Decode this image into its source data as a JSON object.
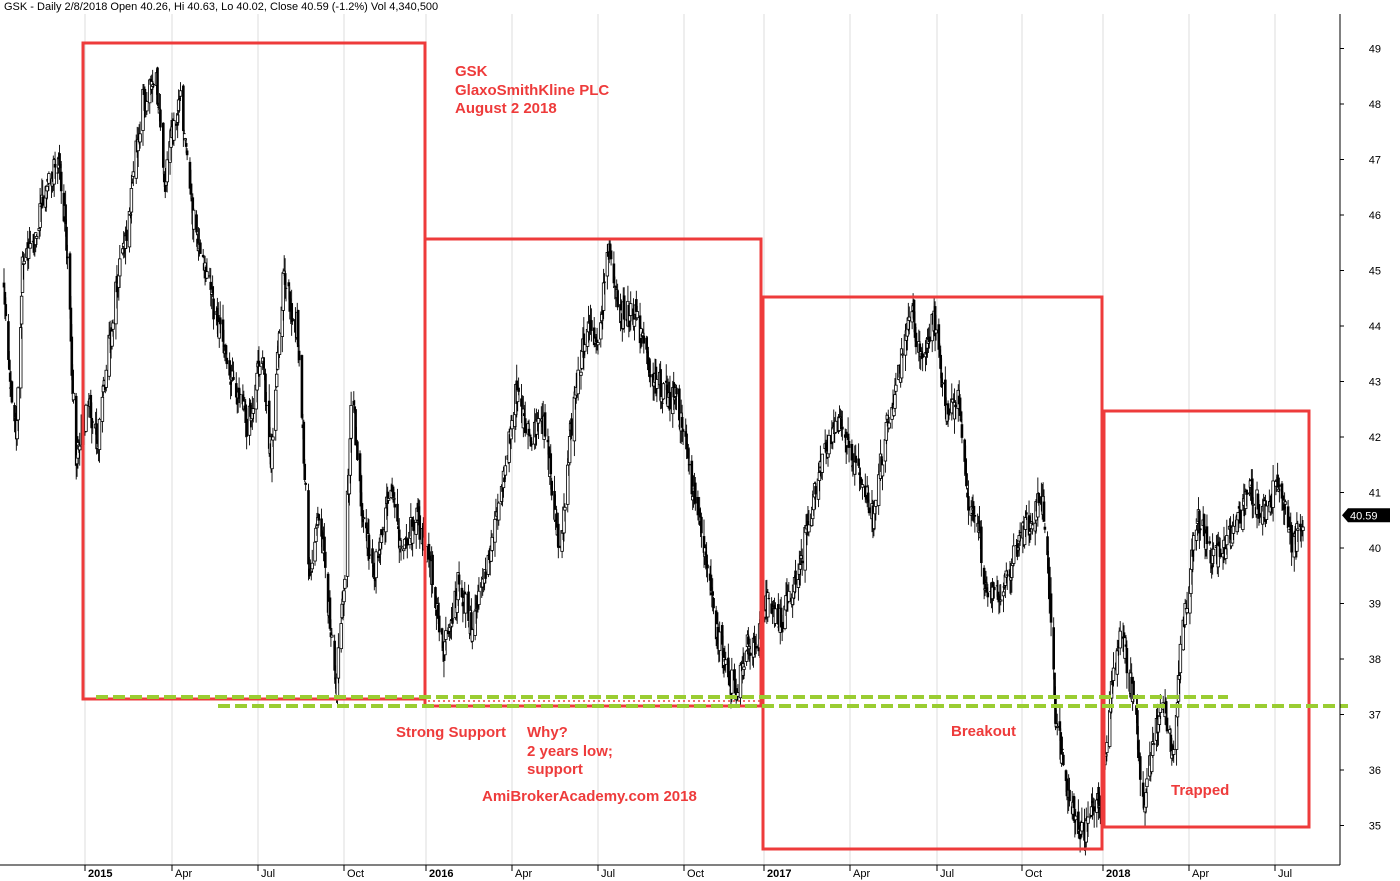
{
  "header": "GSK - Daily 2/8/2018 Open 40.26, Hi 40.63, Lo 40.02, Close 40.59 (-1.2%) Vol 4,340,500",
  "chart_data": {
    "type": "candlestick",
    "ylim": [
      34.6,
      49.5
    ],
    "y_ticks": [
      35,
      36,
      37,
      38,
      39,
      40,
      41,
      42,
      43,
      44,
      45,
      46,
      47,
      48,
      49
    ],
    "x_ticks": [
      {
        "label": "2015",
        "bold": true
      },
      {
        "label": "Apr",
        "bold": false
      },
      {
        "label": "Jul",
        "bold": false
      },
      {
        "label": "Oct",
        "bold": false
      },
      {
        "label": "2016",
        "bold": true
      },
      {
        "label": "Apr",
        "bold": false
      },
      {
        "label": "Jul",
        "bold": false
      },
      {
        "label": "Oct",
        "bold": false
      },
      {
        "label": "2017",
        "bold": true
      },
      {
        "label": "Apr",
        "bold": false
      },
      {
        "label": "Jul",
        "bold": false
      },
      {
        "label": "Oct",
        "bold": false
      },
      {
        "label": "2018",
        "bold": true
      },
      {
        "label": "Apr",
        "bold": false
      },
      {
        "label": "Jul",
        "bold": false
      }
    ],
    "last_price": "40.59",
    "price_anchors": [
      [
        "2014-10-01",
        44.8
      ],
      [
        "2014-10-08",
        43.0
      ],
      [
        "2014-10-15",
        42.0
      ],
      [
        "2014-10-22",
        45.0
      ],
      [
        "2014-11-05",
        45.5
      ],
      [
        "2014-11-19",
        46.6
      ],
      [
        "2014-12-01",
        47.0
      ],
      [
        "2014-12-10",
        45.8
      ],
      [
        "2014-12-22",
        41.6
      ],
      [
        "2015-01-05",
        42.7
      ],
      [
        "2015-01-14",
        41.8
      ],
      [
        "2015-02-01",
        44.5
      ],
      [
        "2015-02-15",
        45.9
      ],
      [
        "2015-03-01",
        48.0
      ],
      [
        "2015-03-15",
        48.6
      ],
      [
        "2015-03-24",
        46.5
      ],
      [
        "2015-04-01",
        47.5
      ],
      [
        "2015-04-10",
        48.0
      ],
      [
        "2015-04-22",
        46.0
      ],
      [
        "2015-05-05",
        45.2
      ],
      [
        "2015-05-20",
        43.9
      ],
      [
        "2015-06-05",
        43.0
      ],
      [
        "2015-06-20",
        42.2
      ],
      [
        "2015-07-05",
        43.6
      ],
      [
        "2015-07-15",
        41.6
      ],
      [
        "2015-07-28",
        44.8
      ],
      [
        "2015-08-12",
        44.0
      ],
      [
        "2015-08-25",
        39.6
      ],
      [
        "2015-09-05",
        40.8
      ],
      [
        "2015-09-22",
        37.4
      ],
      [
        "2015-10-02",
        39.5
      ],
      [
        "2015-10-10",
        42.9
      ],
      [
        "2015-10-22",
        40.5
      ],
      [
        "2015-11-05",
        39.6
      ],
      [
        "2015-11-22",
        41.0
      ],
      [
        "2015-12-05",
        40.0
      ],
      [
        "2015-12-20",
        40.6
      ],
      [
        "2016-01-05",
        39.8
      ],
      [
        "2016-01-20",
        38.1
      ],
      [
        "2016-02-05",
        39.4
      ],
      [
        "2016-02-18",
        38.6
      ],
      [
        "2016-03-05",
        39.6
      ],
      [
        "2016-03-22",
        41.2
      ],
      [
        "2016-04-05",
        42.8
      ],
      [
        "2016-04-20",
        42.0
      ],
      [
        "2016-05-05",
        42.3
      ],
      [
        "2016-05-22",
        39.9
      ],
      [
        "2016-06-05",
        42.6
      ],
      [
        "2016-06-20",
        44.0
      ],
      [
        "2016-07-01",
        43.5
      ],
      [
        "2016-07-12",
        45.4
      ],
      [
        "2016-07-25",
        44.2
      ],
      [
        "2016-08-10",
        44.2
      ],
      [
        "2016-08-25",
        43.2
      ],
      [
        "2016-09-10",
        42.8
      ],
      [
        "2016-09-25",
        42.6
      ],
      [
        "2016-10-05",
        41.6
      ],
      [
        "2016-10-20",
        40.4
      ],
      [
        "2016-11-05",
        38.7
      ],
      [
        "2016-11-20",
        37.6
      ],
      [
        "2016-12-01",
        37.5
      ],
      [
        "2016-12-12",
        38.2
      ],
      [
        "2016-12-28",
        38.4
      ],
      [
        "2017-01-05",
        39.1
      ],
      [
        "2017-01-20",
        38.7
      ],
      [
        "2017-02-05",
        39.5
      ],
      [
        "2017-02-20",
        40.8
      ],
      [
        "2017-03-05",
        41.6
      ],
      [
        "2017-03-20",
        42.3
      ],
      [
        "2017-04-01",
        41.8
      ],
      [
        "2017-04-15",
        41.1
      ],
      [
        "2017-04-25",
        40.6
      ],
      [
        "2017-05-10",
        42.2
      ],
      [
        "2017-05-25",
        43.4
      ],
      [
        "2017-06-05",
        44.3
      ],
      [
        "2017-06-15",
        43.2
      ],
      [
        "2017-06-28",
        44.1
      ],
      [
        "2017-07-10",
        42.5
      ],
      [
        "2017-07-25",
        42.7
      ],
      [
        "2017-08-05",
        40.6
      ],
      [
        "2017-08-15",
        40.3
      ],
      [
        "2017-08-25",
        39.0
      ],
      [
        "2017-09-10",
        39.2
      ],
      [
        "2017-09-25",
        40.0
      ],
      [
        "2017-10-10",
        40.5
      ],
      [
        "2017-10-25",
        40.9
      ],
      [
        "2017-11-01",
        39.3
      ],
      [
        "2017-11-08",
        37.0
      ],
      [
        "2017-11-20",
        35.7
      ],
      [
        "2017-12-01",
        35.2
      ],
      [
        "2017-12-10",
        34.8
      ],
      [
        "2017-12-20",
        35.5
      ],
      [
        "2017-12-29",
        35.4
      ],
      [
        "2018-01-08",
        37.1
      ],
      [
        "2018-01-20",
        38.6
      ],
      [
        "2018-02-05",
        36.9
      ],
      [
        "2018-02-12",
        35.3
      ],
      [
        "2018-02-22",
        36.5
      ],
      [
        "2018-03-05",
        37.2
      ],
      [
        "2018-03-15",
        36.3
      ],
      [
        "2018-03-25",
        38.5
      ],
      [
        "2018-04-10",
        40.6
      ],
      [
        "2018-04-25",
        39.8
      ],
      [
        "2018-05-15",
        40.2
      ],
      [
        "2018-06-05",
        41.0
      ],
      [
        "2018-06-20",
        40.6
      ],
      [
        "2018-07-05",
        41.2
      ],
      [
        "2018-07-20",
        40.1
      ],
      [
        "2018-08-02",
        40.59
      ]
    ]
  },
  "annotations": {
    "title_line1": "GSK",
    "title_line2": "GlaxoSmithKline PLC",
    "title_line3": "August 2 2018",
    "strong_support": "Strong Support",
    "why_line1": "Why?",
    "why_line2": "2 years low;",
    "why_line3": "support",
    "site": "AmiBrokerAcademy.com  2018",
    "breakout": "Breakout",
    "trapped": "Trapped"
  },
  "colors": {
    "annotation_red": "#ee3b3b",
    "support_green": "#9acd32",
    "candle": "#000000",
    "gridline": "#dcdcdc"
  }
}
